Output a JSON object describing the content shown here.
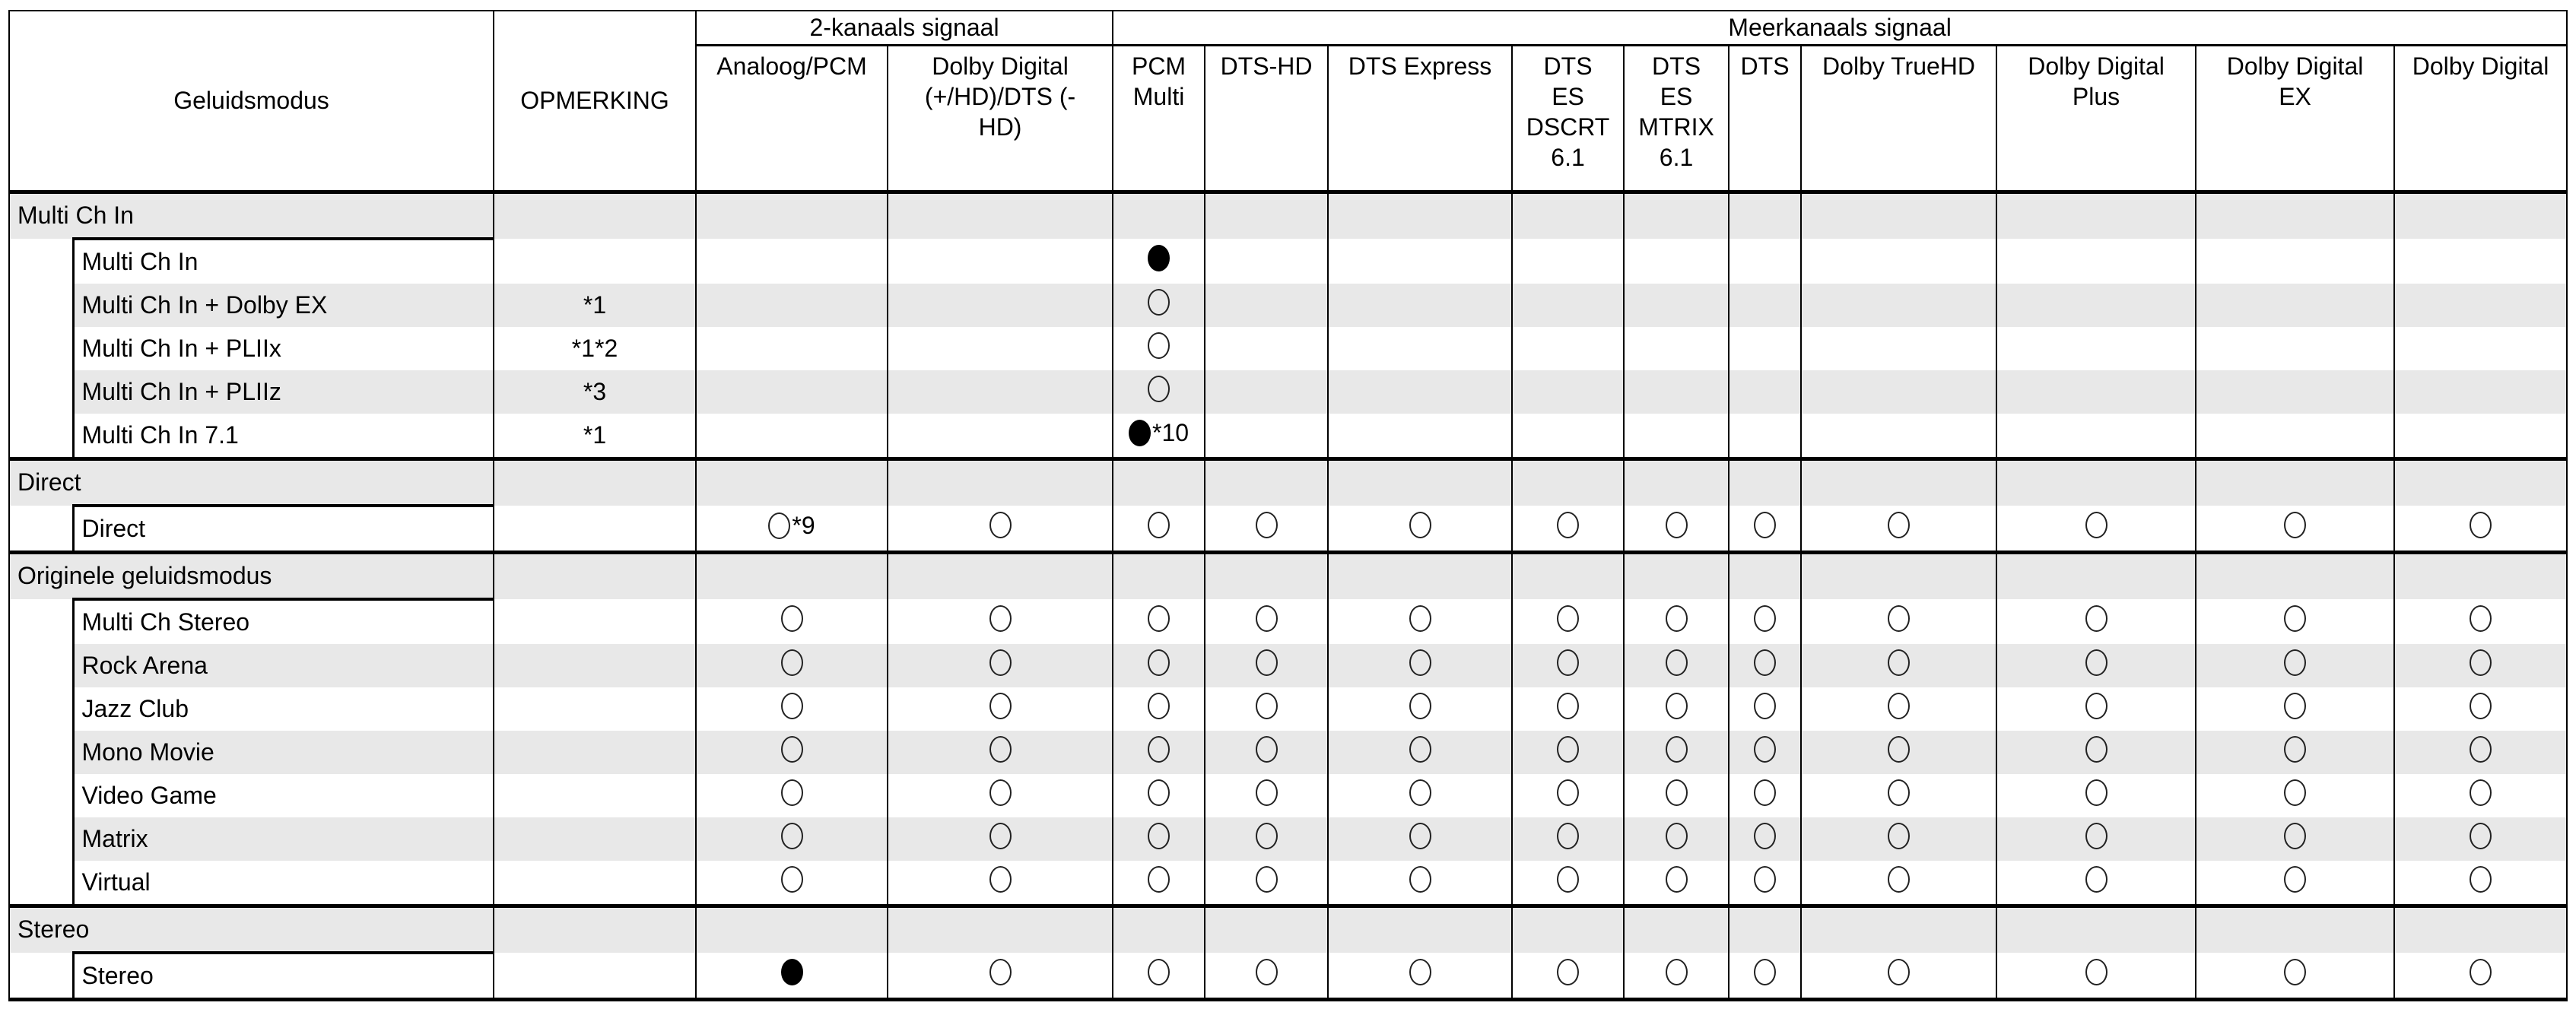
{
  "headers": {
    "mode": "Geluidsmodus",
    "remark": "OPMERKING",
    "two_channel": "2-kanaals signaal",
    "multi_channel": "Meerkanaals signaal",
    "columns": [
      "Analoog/PCM",
      "Dolby Digital\n(+/HD)/DTS (-\nHD)",
      "PCM\nMulti",
      "DTS-HD",
      "DTS Express",
      "DTS\nES\nDSCRT\n6.1",
      "DTS\nES\nMTRIX\n6.1",
      "DTS",
      "Dolby TrueHD",
      "Dolby Digital\nPlus",
      "Dolby Digital\nEX",
      "Dolby Digital"
    ]
  },
  "legend": {
    "filled": "●",
    "open": "○"
  },
  "groups": [
    {
      "label": "Multi Ch In",
      "rows": [
        {
          "name": "Multi Ch In",
          "remark": "",
          "cells": [
            "",
            "",
            "filled",
            "",
            "",
            "",
            "",
            "",
            "",
            "",
            "",
            ""
          ]
        },
        {
          "name": "Multi Ch In + Dolby EX",
          "remark": "*1",
          "cells": [
            "",
            "",
            "open",
            "",
            "",
            "",
            "",
            "",
            "",
            "",
            "",
            ""
          ]
        },
        {
          "name": "Multi Ch In + PLIIx",
          "remark": "*1*2",
          "cells": [
            "",
            "",
            "open",
            "",
            "",
            "",
            "",
            "",
            "",
            "",
            "",
            ""
          ]
        },
        {
          "name": "Multi Ch In + PLIIz",
          "remark": "*3",
          "cells": [
            "",
            "",
            "open",
            "",
            "",
            "",
            "",
            "",
            "",
            "",
            "",
            ""
          ]
        },
        {
          "name": "Multi Ch In 7.1",
          "remark": "*1",
          "cells": [
            "",
            "",
            "filled*10",
            "",
            "",
            "",
            "",
            "",
            "",
            "",
            "",
            ""
          ]
        }
      ]
    },
    {
      "label": "Direct",
      "rows": [
        {
          "name": "Direct",
          "remark": "",
          "cells": [
            "open*9",
            "open",
            "open",
            "open",
            "open",
            "open",
            "open",
            "open",
            "open",
            "open",
            "open",
            "open"
          ]
        }
      ]
    },
    {
      "label": "Originele geluidsmodus",
      "rows": [
        {
          "name": "Multi Ch Stereo",
          "remark": "",
          "cells": [
            "open",
            "open",
            "open",
            "open",
            "open",
            "open",
            "open",
            "open",
            "open",
            "open",
            "open",
            "open"
          ]
        },
        {
          "name": "Rock Arena",
          "remark": "",
          "cells": [
            "open",
            "open",
            "open",
            "open",
            "open",
            "open",
            "open",
            "open",
            "open",
            "open",
            "open",
            "open"
          ]
        },
        {
          "name": "Jazz Club",
          "remark": "",
          "cells": [
            "open",
            "open",
            "open",
            "open",
            "open",
            "open",
            "open",
            "open",
            "open",
            "open",
            "open",
            "open"
          ]
        },
        {
          "name": "Mono Movie",
          "remark": "",
          "cells": [
            "open",
            "open",
            "open",
            "open",
            "open",
            "open",
            "open",
            "open",
            "open",
            "open",
            "open",
            "open"
          ]
        },
        {
          "name": "Video Game",
          "remark": "",
          "cells": [
            "open",
            "open",
            "open",
            "open",
            "open",
            "open",
            "open",
            "open",
            "open",
            "open",
            "open",
            "open"
          ]
        },
        {
          "name": "Matrix",
          "remark": "",
          "cells": [
            "open",
            "open",
            "open",
            "open",
            "open",
            "open",
            "open",
            "open",
            "open",
            "open",
            "open",
            "open"
          ]
        },
        {
          "name": "Virtual",
          "remark": "",
          "cells": [
            "open",
            "open",
            "open",
            "open",
            "open",
            "open",
            "open",
            "open",
            "open",
            "open",
            "open",
            "open"
          ]
        }
      ]
    },
    {
      "label": "Stereo",
      "rows": [
        {
          "name": "Stereo",
          "remark": "",
          "cells": [
            "filled",
            "open",
            "open",
            "open",
            "open",
            "open",
            "open",
            "open",
            "open",
            "open",
            "open",
            "open"
          ]
        }
      ]
    }
  ]
}
